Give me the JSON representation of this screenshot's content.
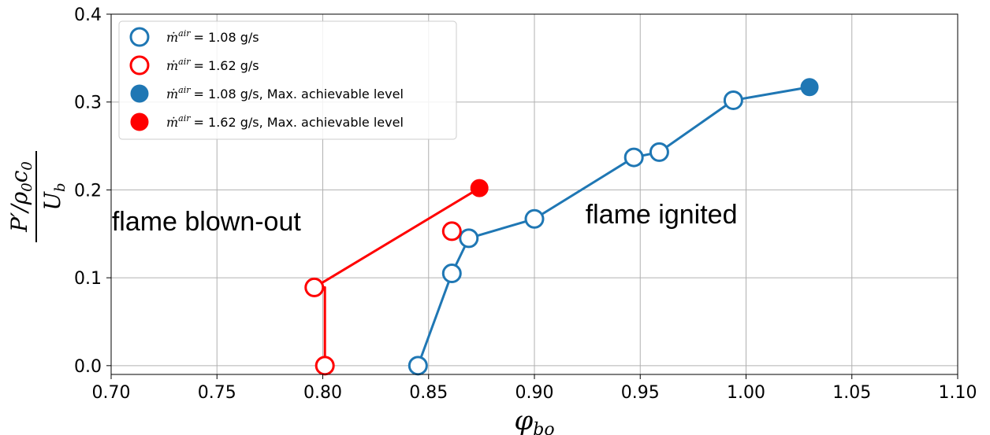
{
  "chart_data": {
    "type": "scatter",
    "xlabel": "φbo",
    "ylabel": {
      "numerator": "P′/ρ0c0",
      "denominator": "Ub"
    },
    "xlim": [
      0.7,
      1.1
    ],
    "ylim": [
      -0.01,
      0.4
    ],
    "x_ticks": [
      "0.70",
      "0.75",
      "0.80",
      "0.85",
      "0.90",
      "0.95",
      "1.00",
      "1.05",
      "1.10"
    ],
    "y_ticks": [
      "0.0",
      "0.1",
      "0.2",
      "0.3",
      "0.4"
    ],
    "grid": true,
    "legend_position": "top-left",
    "annotations": [
      {
        "text": "flame blown-out",
        "x": 0.745,
        "y": 0.154
      },
      {
        "text": "flame ignited",
        "x": 0.96,
        "y": 0.162
      }
    ],
    "series": [
      {
        "name": "ṁair = 1.08 g/s",
        "legend_text": "= 1.08 g/s",
        "color": "#1f77b4",
        "marker": "open-circle",
        "line": true,
        "points": [
          {
            "x": 0.845,
            "y": 0.0
          },
          {
            "x": 0.861,
            "y": 0.105
          },
          {
            "x": 0.869,
            "y": 0.145
          },
          {
            "x": 0.9,
            "y": 0.167
          },
          {
            "x": 0.947,
            "y": 0.237
          },
          {
            "x": 0.959,
            "y": 0.243
          },
          {
            "x": 0.994,
            "y": 0.302
          }
        ],
        "line_end": {
          "x": 1.03,
          "y": 0.317
        }
      },
      {
        "name": "ṁair = 1.62 g/s",
        "legend_text": "= 1.62 g/s",
        "color": "#ff0000",
        "marker": "open-circle",
        "line": true,
        "points": [
          {
            "x": 0.801,
            "y": 0.0
          },
          {
            "x": 0.796,
            "y": 0.089
          },
          {
            "x": 0.861,
            "y": 0.153
          }
        ],
        "line_path": [
          {
            "x": 0.801,
            "y": 0.0
          },
          {
            "x": 0.801,
            "y": 0.089
          },
          {
            "x": 0.796,
            "y": 0.089
          },
          {
            "x": 0.874,
            "y": 0.202
          }
        ]
      },
      {
        "name": "ṁair = 1.08 g/s, Max. achievable level",
        "legend_text": "= 1.08 g/s, Max. achievable level",
        "color": "#1f77b4",
        "marker": "filled-circle",
        "line": false,
        "points": [
          {
            "x": 1.03,
            "y": 0.317
          }
        ]
      },
      {
        "name": "ṁair = 1.62 g/s, Max. achievable level",
        "legend_text": "= 1.62 g/s, Max. achievable level",
        "color": "#ff0000",
        "marker": "filled-circle",
        "line": false,
        "points": [
          {
            "x": 0.874,
            "y": 0.202
          }
        ]
      }
    ]
  }
}
